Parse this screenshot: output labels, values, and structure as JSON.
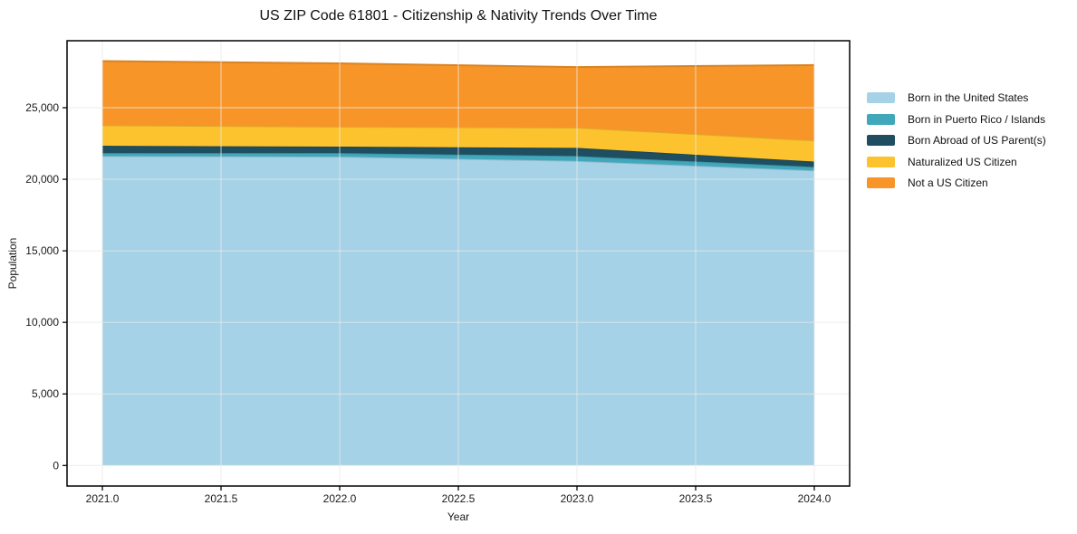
{
  "chart_data": {
    "type": "area",
    "stacked": true,
    "title": "US ZIP Code 61801 - Citizenship & Nativity Trends Over Time",
    "xlabel": "Year",
    "ylabel": "Population",
    "x": [
      2021,
      2022,
      2023,
      2024
    ],
    "series": [
      {
        "name": "Born in the United States",
        "color": "#a5d2e6",
        "values": [
          21620,
          21580,
          21280,
          20610
        ]
      },
      {
        "name": "Born in Puerto Rico / Islands",
        "color": "#41a8bc",
        "values": [
          210,
          250,
          340,
          250
        ]
      },
      {
        "name": "Born Abroad of US Parent(s)",
        "color": "#1f4e61",
        "values": [
          510,
          450,
          570,
          380
        ]
      },
      {
        "name": "Naturalized US Citizen",
        "color": "#fcc32f",
        "values": [
          1430,
          1390,
          1420,
          1470
        ]
      },
      {
        "name": "Not a US Citizen",
        "color": "#f79528",
        "values": [
          4490,
          4430,
          4230,
          5270
        ]
      }
    ],
    "totals": [
      28260,
      28100,
      27840,
      27980
    ],
    "x_ticks": {
      "values": [
        2021,
        2021.5,
        2022,
        2022.5,
        2023,
        2023.5,
        2024
      ],
      "labels": [
        "2021.0",
        "2021.5",
        "2022.0",
        "2022.5",
        "2023.0",
        "2023.5",
        "2024.0"
      ]
    },
    "y_ticks": {
      "values": [
        0,
        5000,
        10000,
        15000,
        20000,
        25000
      ],
      "labels": [
        "0",
        "5,000",
        "10,000",
        "15,000",
        "20,000",
        "25,000"
      ]
    },
    "x_range": [
      2020.851,
      2024.149
    ],
    "y_range": [
      -1436,
      29680
    ],
    "grid": true,
    "grid_color": "#e8e8e8",
    "axis_color": "#000000",
    "legend_position": "right"
  }
}
